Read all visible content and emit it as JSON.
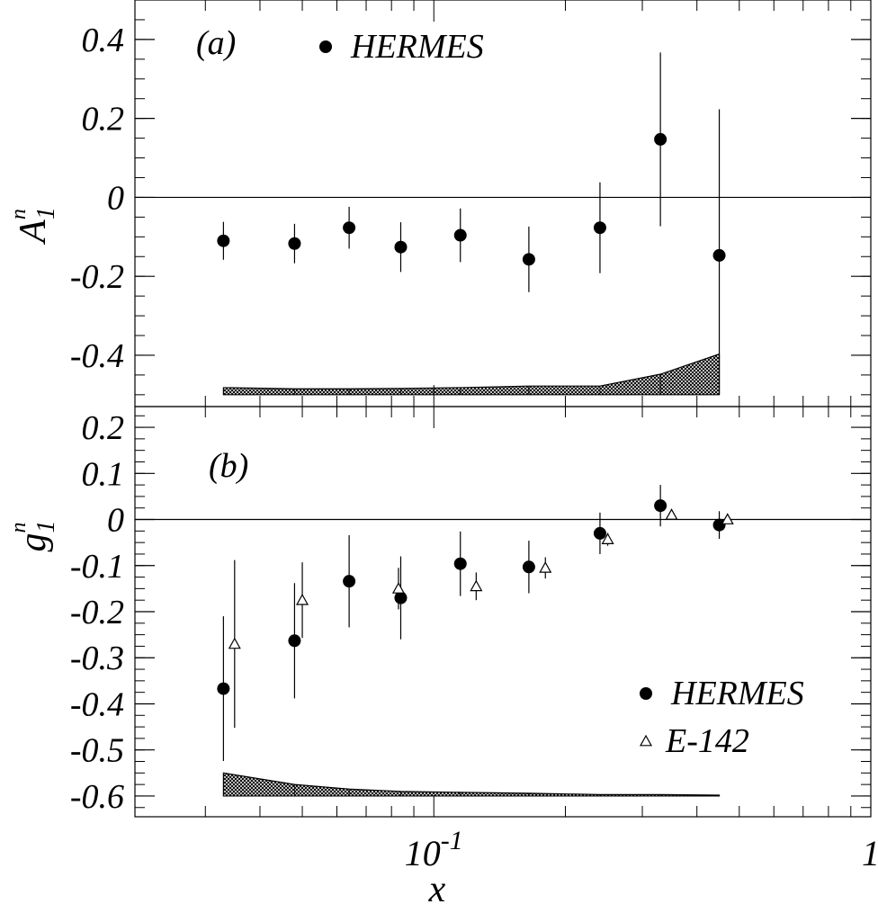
{
  "chart_data": [
    {
      "panel": "(a)",
      "type": "scatter",
      "ylabel": "A",
      "ylabel_sub": "1",
      "ylabel_sup": "n",
      "ylim": [
        -0.53,
        0.5
      ],
      "yticks": [
        {
          "v": 0.4,
          "label": "0.4"
        },
        {
          "v": 0.2,
          "label": "0.2"
        },
        {
          "v": 0,
          "label": "0"
        },
        {
          "v": -0.2,
          "label": "-0.2"
        },
        {
          "v": -0.4,
          "label": "-0.4"
        }
      ],
      "x_scale": "log",
      "zero_line": true,
      "legend": [
        {
          "name": "HERMES",
          "marker": "filled-circle"
        }
      ],
      "series": [
        {
          "name": "HERMES",
          "marker": "filled-circle",
          "points": [
            {
              "x": 0.033,
              "y": -0.11,
              "err": 0.048
            },
            {
              "x": 0.048,
              "y": -0.117,
              "err": 0.05
            },
            {
              "x": 0.064,
              "y": -0.077,
              "err": 0.053
            },
            {
              "x": 0.084,
              "y": -0.126,
              "err": 0.063
            },
            {
              "x": 0.115,
              "y": -0.096,
              "err": 0.068
            },
            {
              "x": 0.165,
              "y": -0.157,
              "err": 0.083
            },
            {
              "x": 0.24,
              "y": -0.077,
              "err": 0.115
            },
            {
              "x": 0.33,
              "y": 0.147,
              "err": 0.22
            },
            {
              "x": 0.45,
              "y": -0.147,
              "err": 0.37
            }
          ]
        }
      ],
      "systematic_band": {
        "baseline": -0.5,
        "points": [
          {
            "x": 0.033,
            "top": -0.482
          },
          {
            "x": 0.048,
            "top": -0.485
          },
          {
            "x": 0.064,
            "top": -0.485
          },
          {
            "x": 0.084,
            "top": -0.484
          },
          {
            "x": 0.115,
            "top": -0.482
          },
          {
            "x": 0.165,
            "top": -0.478
          },
          {
            "x": 0.24,
            "top": -0.478
          },
          {
            "x": 0.33,
            "top": -0.448
          },
          {
            "x": 0.45,
            "top": -0.397
          }
        ]
      }
    },
    {
      "panel": "(b)",
      "type": "scatter",
      "ylabel": "g",
      "ylabel_sub": "1",
      "ylabel_sup": "n",
      "xlabel": "x",
      "ylim": [
        -0.645,
        0.245
      ],
      "yticks": [
        {
          "v": 0.2,
          "label": "0.2"
        },
        {
          "v": 0.1,
          "label": "0.1"
        },
        {
          "v": 0,
          "label": "0"
        },
        {
          "v": -0.1,
          "label": "-0.1"
        },
        {
          "v": -0.2,
          "label": "-0.2"
        },
        {
          "v": -0.3,
          "label": "-0.3"
        },
        {
          "v": -0.4,
          "label": "-0.4"
        },
        {
          "v": -0.5,
          "label": "-0.5"
        },
        {
          "v": -0.6,
          "label": "-0.6"
        }
      ],
      "x_scale": "log",
      "xlim": [
        0.0207,
        1
      ],
      "xtick_labels": [
        {
          "x": 0.1,
          "base": "10",
          "exp": "-1"
        },
        {
          "x": 1,
          "base": "1",
          "exp": ""
        }
      ],
      "zero_line": true,
      "legend": [
        {
          "name": "HERMES",
          "marker": "filled-circle"
        },
        {
          "name": "E-142",
          "marker": "open-triangle"
        }
      ],
      "series": [
        {
          "name": "HERMES",
          "marker": "filled-circle",
          "points": [
            {
              "x": 0.033,
              "y": -0.367,
              "err": 0.157
            },
            {
              "x": 0.048,
              "y": -0.263,
              "err": 0.125
            },
            {
              "x": 0.064,
              "y": -0.134,
              "err": 0.1
            },
            {
              "x": 0.084,
              "y": -0.17,
              "err": 0.09
            },
            {
              "x": 0.115,
              "y": -0.096,
              "err": 0.07
            },
            {
              "x": 0.165,
              "y": -0.103,
              "err": 0.057
            },
            {
              "x": 0.24,
              "y": -0.03,
              "err": 0.045
            },
            {
              "x": 0.33,
              "y": 0.03,
              "err": 0.045
            },
            {
              "x": 0.45,
              "y": -0.012,
              "err": 0.03
            }
          ]
        },
        {
          "name": "E-142",
          "marker": "open-triangle",
          "points": [
            {
              "x": 0.035,
              "y": -0.27,
              "err": 0.182
            },
            {
              "x": 0.05,
              "y": -0.175,
              "err": 0.082
            },
            {
              "x": 0.083,
              "y": -0.15,
              "err": 0.045
            },
            {
              "x": 0.125,
              "y": -0.145,
              "err": 0.03
            },
            {
              "x": 0.18,
              "y": -0.105,
              "err": 0.023
            },
            {
              "x": 0.25,
              "y": -0.043,
              "err": 0.014
            },
            {
              "x": 0.35,
              "y": 0.01,
              "err": 0.011
            },
            {
              "x": 0.47,
              "y": 0.0,
              "err": 0.008
            }
          ]
        }
      ],
      "systematic_band": {
        "baseline": -0.6,
        "points": [
          {
            "x": 0.033,
            "top": -0.55
          },
          {
            "x": 0.048,
            "top": -0.575
          },
          {
            "x": 0.064,
            "top": -0.585
          },
          {
            "x": 0.084,
            "top": -0.59
          },
          {
            "x": 0.115,
            "top": -0.592
          },
          {
            "x": 0.165,
            "top": -0.594
          },
          {
            "x": 0.24,
            "top": -0.597
          },
          {
            "x": 0.33,
            "top": -0.597
          },
          {
            "x": 0.45,
            "top": -0.598
          }
        ]
      }
    }
  ]
}
